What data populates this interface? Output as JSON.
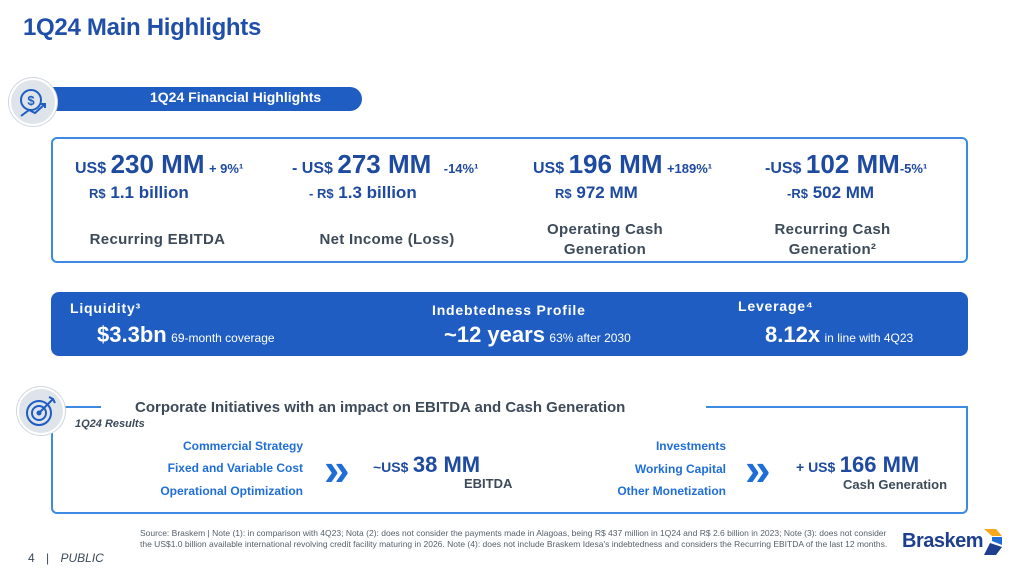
{
  "page": {
    "title": "1Q24 Main Highlights"
  },
  "financial": {
    "section_label": "1Q24 Financial Highlights",
    "icon": "dollar-growth-icon",
    "metrics": [
      {
        "prefix": "US$",
        "value": "230 MM",
        "change": "+ 9%¹",
        "sub_prefix": "R$",
        "sub_value": "1.1 billion",
        "label": "Recurring EBITDA"
      },
      {
        "prefix": "- US$",
        "value": "273 MM",
        "change": "-14%¹",
        "sub_prefix": "- R$",
        "sub_value": "1.3 billion",
        "label": "Net Income (Loss)"
      },
      {
        "prefix": "US$",
        "value": "196 MM",
        "change": "+189%¹",
        "sub_prefix": "R$",
        "sub_value": "972 MM",
        "label": "Operating Cash Generation"
      },
      {
        "prefix": "-US$",
        "value": "102 MM",
        "change": "-5%¹",
        "sub_prefix": "-R$",
        "sub_value": "502 MM",
        "label": "Recurring Cash Generation²"
      }
    ]
  },
  "liquidity": {
    "items": [
      {
        "heading": "Liquidity³",
        "value": "$3.3bn",
        "detail": "69-month coverage"
      },
      {
        "heading": "Indebtedness Profile",
        "value": "~12 years",
        "detail": "63% after 2030"
      },
      {
        "heading": "Leverage⁴",
        "value": "8.12x",
        "detail": "in line with 4Q23"
      }
    ]
  },
  "corporate": {
    "title": "Corporate Initiatives with an impact on EBITDA and Cash Generation",
    "subtitle": "1Q24 Results",
    "icon": "target-icon",
    "left_links": [
      "Commercial Strategy",
      "Fixed and Variable Cost",
      "Operational Optimization"
    ],
    "left_result": {
      "prefix": "~US$",
      "value": "38 MM",
      "label": "EBITDA"
    },
    "right_links": [
      "Investments",
      "Working Capital",
      "Other Monetization"
    ],
    "right_result": {
      "prefix": "+ US$",
      "value": "166 MM",
      "label": "Cash Generation"
    },
    "chevron_glyph": "»"
  },
  "footnote": "Source: Braskem | Note (1): in comparison with 4Q23; Nota (2): does not consider the payments made in Alagoas, being R$ 437 million in 1Q24 and R$ 2.6 billion in 2023; Note (3): does not consider the US$1.0 billion available international revolving credit facility maturing in 2026. Note (4): does not include Braskem Idesa's indebtedness and considers the Recurring EBITDA of the last 12 months.",
  "footer": {
    "page_number": "4",
    "separator": "|",
    "classification": "PUBLIC",
    "brand": "Braskem"
  },
  "colors": {
    "primary": "#1f5dc2",
    "accent": "#3d8be0",
    "link": "#1f6ed8"
  }
}
